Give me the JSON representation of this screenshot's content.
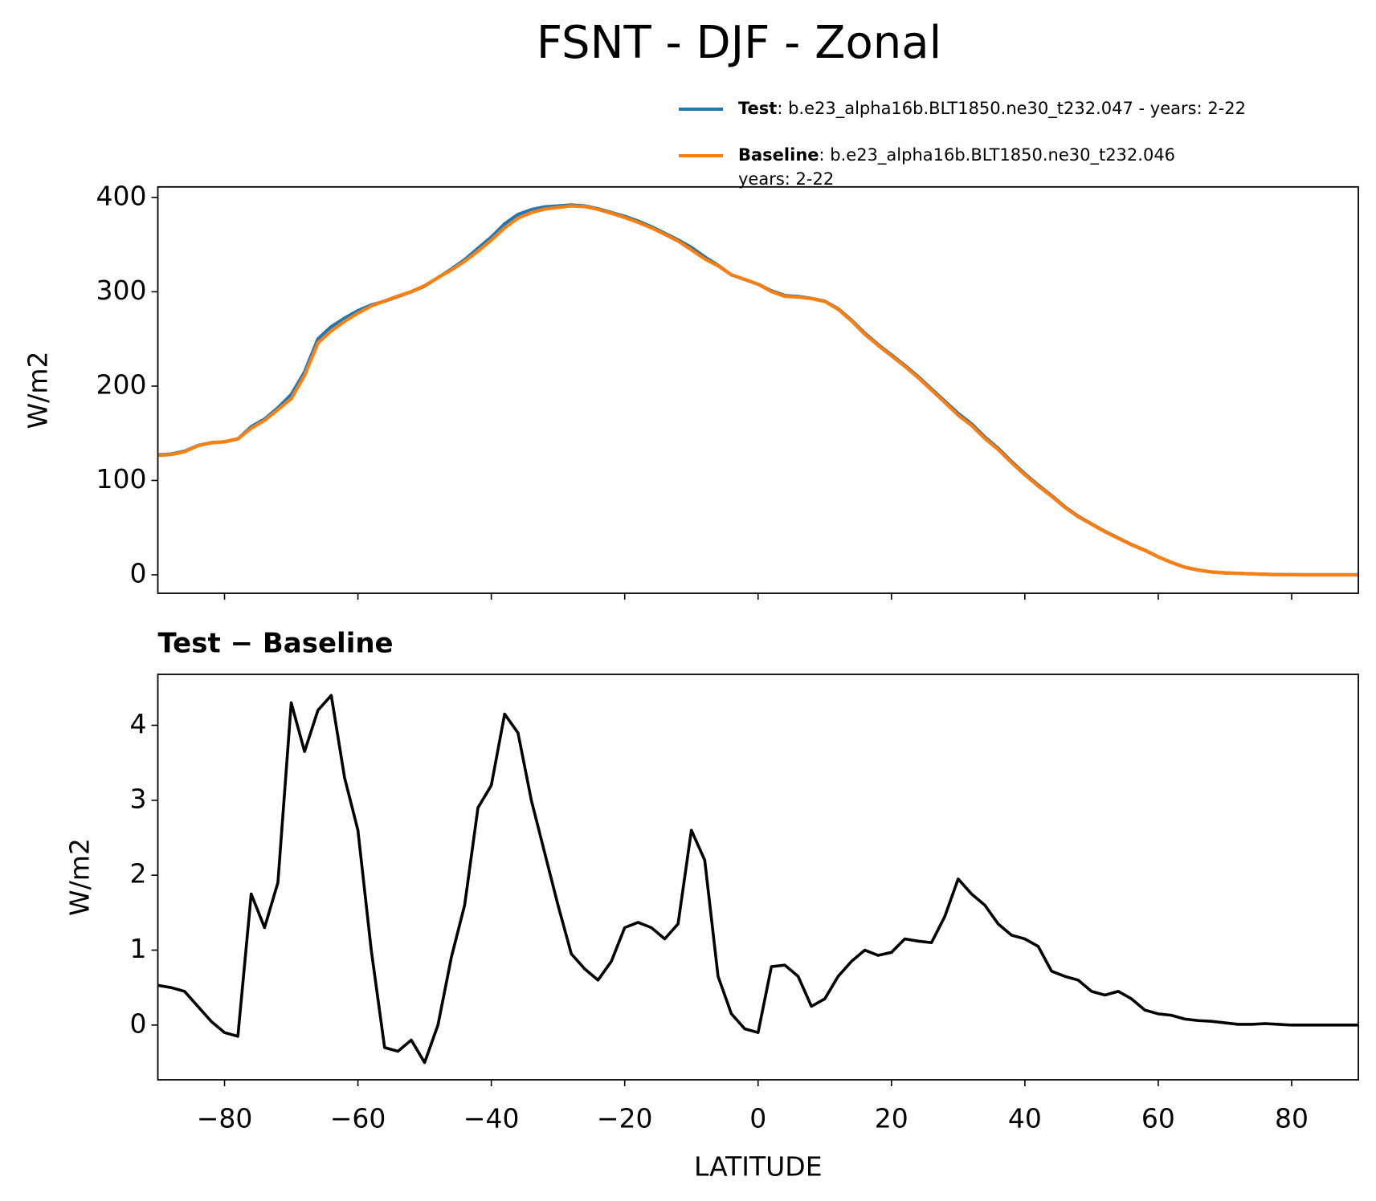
{
  "chart_data": [
    {
      "type": "line",
      "title": "FSNT - DJF - Zonal",
      "ylabel": "W/m2",
      "xlim": [
        -90,
        90
      ],
      "xticks": [
        -80,
        -60,
        -40,
        -20,
        0,
        20,
        40,
        60,
        80
      ],
      "ylim": [
        -19.6,
        411.2
      ],
      "yticks": [
        0,
        100,
        200,
        300,
        400
      ],
      "x": [
        -90,
        -88,
        -86,
        -84,
        -82,
        -80,
        -78,
        -76,
        -74,
        -72,
        -70,
        -68,
        -66,
        -64,
        -62,
        -60,
        -58,
        -56,
        -54,
        -52,
        -50,
        -48,
        -46,
        -44,
        -42,
        -40,
        -38,
        -36,
        -34,
        -32,
        -30,
        -28,
        -26,
        -24,
        -22,
        -20,
        -18,
        -16,
        -14,
        -12,
        -10,
        -8,
        -6,
        -4,
        -2,
        0,
        2,
        4,
        6,
        8,
        10,
        12,
        14,
        16,
        18,
        20,
        22,
        24,
        26,
        28,
        30,
        32,
        34,
        36,
        38,
        40,
        42,
        44,
        46,
        48,
        50,
        52,
        54,
        56,
        58,
        60,
        62,
        64,
        66,
        68,
        70,
        72,
        74,
        76,
        78,
        80,
        82,
        84,
        86,
        88,
        90
      ],
      "series": [
        {
          "name": "Test",
          "description": [
            ": b.e23_alpha16b.BLT1850.ne30_t232.047 - years: 2-22"
          ],
          "color": "#1f77b4",
          "values": [
            127,
            128,
            131,
            137,
            140,
            141,
            144,
            157,
            165,
            177,
            191,
            215,
            250,
            263,
            272,
            280,
            286,
            290,
            295,
            300,
            306,
            315,
            324,
            334,
            346,
            358,
            372,
            382,
            387,
            390,
            391,
            392,
            391,
            388,
            384,
            380,
            375,
            369,
            362,
            355,
            347,
            337,
            328,
            318,
            313,
            308,
            301,
            296,
            295,
            293,
            290,
            282,
            270,
            256,
            244,
            233,
            222,
            210,
            197,
            184,
            171,
            160,
            146,
            134,
            120,
            107,
            95,
            84,
            72,
            62,
            54,
            46,
            39,
            32,
            26,
            19,
            13,
            8,
            5,
            3,
            2,
            1.5,
            1,
            0.5,
            0.2,
            0.1,
            0,
            0,
            0,
            0,
            0
          ]
        },
        {
          "name": "Baseline",
          "description": [
            ": b.e23_alpha16b.BLT1850.ne30_t232.046",
            "years: 2-22"
          ],
          "color": "#ff7f0e",
          "values": [
            126.5,
            127.5,
            130.5,
            136.8,
            140,
            141.1,
            144.2,
            155.3,
            163.7,
            175.1,
            186.7,
            211.4,
            245.8,
            258.6,
            268.7,
            277.4,
            285,
            290.3,
            295.4,
            300.2,
            306.5,
            315,
            323.1,
            332.4,
            343.1,
            354.8,
            367.9,
            378.1,
            384,
            387.7,
            389.4,
            391.1,
            390.3,
            387.4,
            383.2,
            378.7,
            373.6,
            367.7,
            360.9,
            353.7,
            344.4,
            334.8,
            327.4,
            317.9,
            313.1,
            308.1,
            300.2,
            295.2,
            294.4,
            292.8,
            289.7,
            281.4,
            269.2,
            255,
            243.1,
            232,
            220.9,
            208.9,
            195.9,
            182.6,
            169.1,
            158.3,
            144.4,
            132.7,
            118.8,
            105.9,
            94,
            83.3,
            71.4,
            61.4,
            53.6,
            45.6,
            38.6,
            31.7,
            25.8,
            18.9,
            12.9,
            7.9,
            4.9,
            2.95,
            2,
            1.5,
            1,
            0.5,
            0.2,
            0.1,
            0,
            0,
            0,
            0,
            0
          ]
        }
      ]
    },
    {
      "type": "line",
      "title": "Test − Baseline",
      "ylabel": "W/m2",
      "xlabel": "LATITUDE",
      "color": "#000000",
      "xlim": [
        -90,
        90
      ],
      "xticks": [
        {
          "value": -80,
          "label": "−80"
        },
        {
          "value": -60,
          "label": "−60"
        },
        {
          "value": -40,
          "label": "−40"
        },
        {
          "value": -20,
          "label": "−20"
        },
        0,
        20,
        40,
        60,
        80
      ],
      "ylim": [
        -0.73,
        4.68
      ],
      "yticks": [
        0,
        1,
        2,
        3,
        4
      ],
      "x": [
        -90,
        -88,
        -86,
        -84,
        -82,
        -80,
        -78,
        -76,
        -74,
        -72,
        -70,
        -68,
        -66,
        -64,
        -62,
        -60,
        -58,
        -56,
        -54,
        -52,
        -50,
        -48,
        -46,
        -44,
        -42,
        -40,
        -38,
        -36,
        -34,
        -32,
        -30,
        -28,
        -26,
        -24,
        -22,
        -20,
        -18,
        -16,
        -14,
        -12,
        -10,
        -8,
        -6,
        -4,
        -2,
        0,
        2,
        4,
        6,
        8,
        10,
        12,
        14,
        16,
        18,
        20,
        22,
        24,
        26,
        28,
        30,
        32,
        34,
        36,
        38,
        40,
        42,
        44,
        46,
        48,
        50,
        52,
        54,
        56,
        58,
        60,
        62,
        64,
        66,
        68,
        70,
        72,
        74,
        76,
        78,
        80,
        82,
        84,
        86,
        88,
        90
      ],
      "values": [
        0.53,
        0.5,
        0.45,
        0.25,
        0.05,
        -0.1,
        -0.15,
        1.75,
        1.3,
        1.9,
        4.3,
        3.65,
        4.2,
        4.4,
        3.3,
        2.6,
        1.0,
        -0.3,
        -0.35,
        -0.2,
        -0.5,
        0.0,
        0.9,
        1.6,
        2.9,
        3.2,
        4.15,
        3.9,
        3.0,
        2.3,
        1.6,
        0.95,
        0.75,
        0.6,
        0.85,
        1.3,
        1.37,
        1.3,
        1.15,
        1.35,
        2.6,
        2.2,
        0.65,
        0.15,
        -0.05,
        -0.1,
        0.78,
        0.8,
        0.65,
        0.25,
        0.35,
        0.65,
        0.85,
        1.0,
        0.93,
        0.97,
        1.15,
        1.12,
        1.1,
        1.45,
        1.95,
        1.75,
        1.6,
        1.35,
        1.2,
        1.15,
        1.05,
        0.72,
        0.65,
        0.6,
        0.45,
        0.4,
        0.45,
        0.35,
        0.2,
        0.15,
        0.13,
        0.08,
        0.06,
        0.05,
        0.03,
        0.01,
        0.01,
        0.02,
        0.01,
        0,
        0,
        0,
        0,
        0,
        0
      ]
    }
  ]
}
